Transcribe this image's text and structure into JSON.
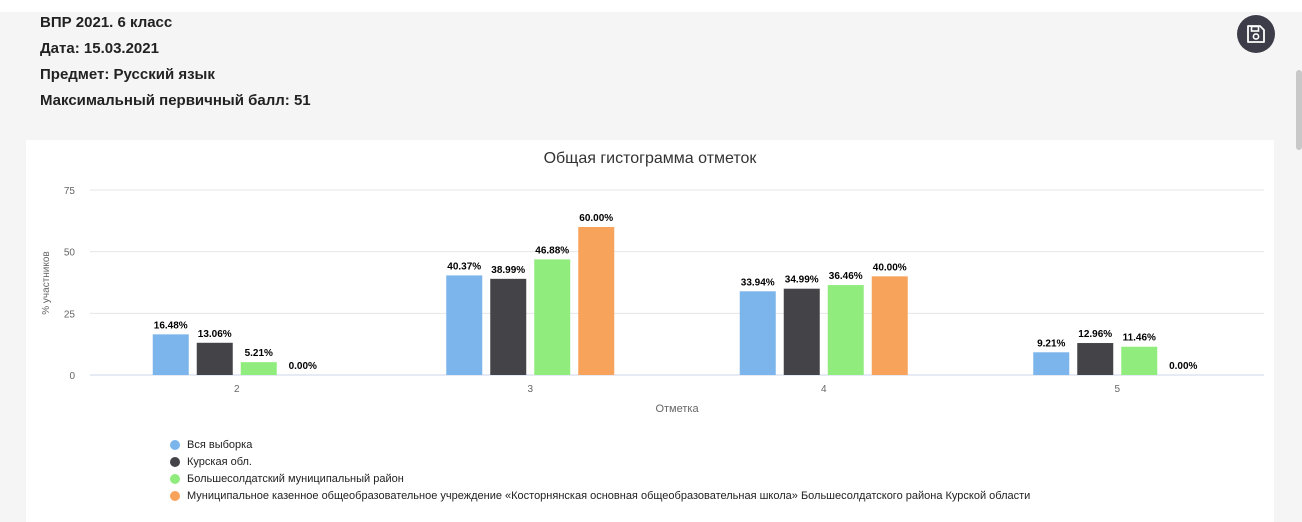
{
  "header": {
    "line1": "ВПР 2021. 6 класс",
    "line2": "Дата: 15.03.2021",
    "line3": "Предмет: Русский язык",
    "line4": "Максимальный первичный балл: 51"
  },
  "toolbar": {
    "save_icon": "save-icon"
  },
  "colors": [
    "#7cb5ec",
    "#434348",
    "#90ed7d",
    "#f7a35c"
  ],
  "chart_data": {
    "type": "bar",
    "title": "Общая гистограмма отметок",
    "xlabel": "Отметка",
    "ylabel": "% участников",
    "ylim": [
      0,
      75
    ],
    "yticks": [
      0,
      25,
      50,
      75
    ],
    "grid": true,
    "legend_position": "bottom-left",
    "categories": [
      "2",
      "3",
      "4",
      "5"
    ],
    "series": [
      {
        "name": "Вся выборка",
        "values": [
          16.48,
          40.37,
          33.94,
          9.21
        ],
        "labels": [
          "16.48%",
          "40.37%",
          "33.94%",
          "9.21%"
        ]
      },
      {
        "name": "Курская обл.",
        "values": [
          13.06,
          38.99,
          34.99,
          12.96
        ],
        "labels": [
          "13.06%",
          "38.99%",
          "34.99%",
          "12.96%"
        ]
      },
      {
        "name": "Большесолдатский муниципальный район",
        "values": [
          5.21,
          46.88,
          36.46,
          11.46
        ],
        "labels": [
          "5.21%",
          "46.88%",
          "36.46%",
          "11.46%"
        ]
      },
      {
        "name": "Муниципальное казенное общеобразовательное учреждение «Косторнянская основная общеобразовательная школа» Большесолдатского района Курской области",
        "values": [
          0.0,
          60.0,
          40.0,
          0.0
        ],
        "labels": [
          "0.00%",
          "60.00%",
          "40.00%",
          "0.00%"
        ]
      }
    ]
  }
}
